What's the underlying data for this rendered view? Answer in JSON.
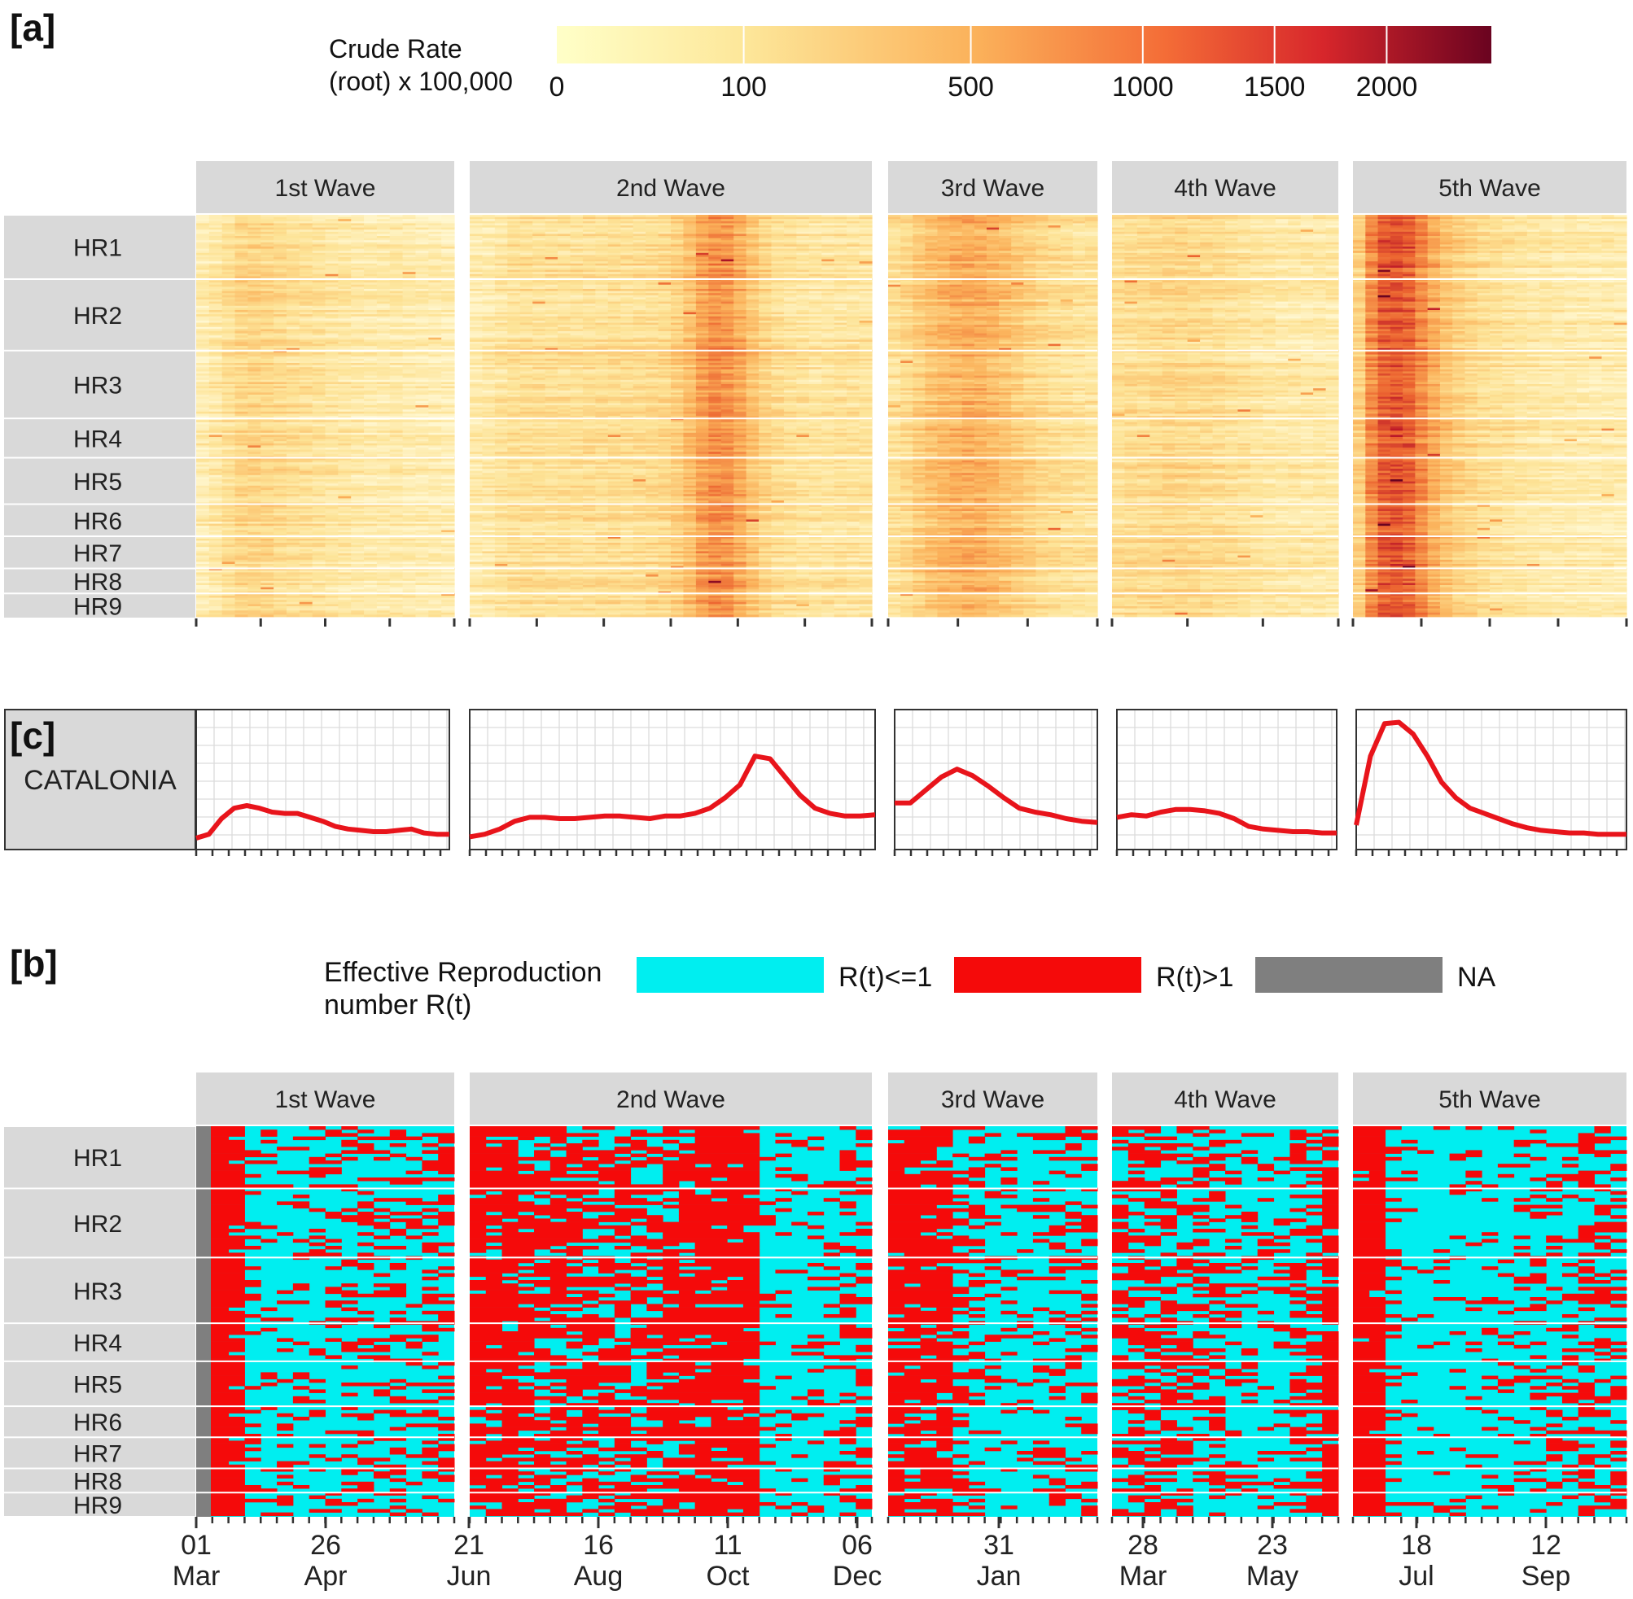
{
  "colors": {
    "strip_bg": "#d9d9d9",
    "line": "#e8141b",
    "grid": "#dcdcdc",
    "rt_low": "#00eef0",
    "rt_high": "#f50a0a",
    "rt_na": "#7f7f7f",
    "heat_low": "#fff7d0",
    "heat_mid": "#fbb15a",
    "heat_high": "#b4112a",
    "heat_max": "#6a0320"
  },
  "panel_labels": {
    "a": "[a]",
    "b": "[b]",
    "c": "[c]"
  },
  "colorbar": {
    "title_line1": "Crude Rate",
    "title_line2": "(root) x 100,000",
    "ticks": [
      {
        "label": "0",
        "value": 0
      },
      {
        "label": "100",
        "value": 100
      },
      {
        "label": "500",
        "value": 500
      },
      {
        "label": "1000",
        "value": 1000
      },
      {
        "label": "1500",
        "value": 1500
      },
      {
        "label": "2000",
        "value": 2000
      }
    ],
    "max_value": 2600
  },
  "rt_legend": {
    "title_line1": "Effective Reproduction",
    "title_line2": "number R(t)",
    "items": [
      {
        "label": "R(t)<=1",
        "color": "#00eef0"
      },
      {
        "label": "R(t)>1",
        "color": "#f50a0a"
      },
      {
        "label": "NA",
        "color": "#7f7f7f"
      }
    ]
  },
  "waves": [
    "1st Wave",
    "2nd Wave",
    "3rd Wave",
    "4th Wave",
    "5th Wave"
  ],
  "regions": [
    "HR1",
    "HR2",
    "HR3",
    "HR4",
    "HR5",
    "HR6",
    "HR7",
    "HR8",
    "HR9"
  ],
  "region_sizes": [
    18,
    20,
    19,
    11,
    13,
    9,
    9,
    7,
    7
  ],
  "catalonia_label": "CATALONIA",
  "x_axis_ticks": [
    {
      "day": "01",
      "month": "Mar"
    },
    {
      "day": "26",
      "month": "Apr"
    },
    {
      "day": "21",
      "month": "Jun"
    },
    {
      "day": "16",
      "month": "Aug"
    },
    {
      "day": "11",
      "month": "Oct"
    },
    {
      "day": "06",
      "month": "Dec"
    },
    {
      "day": "31",
      "month": "Jan"
    },
    {
      "day": "28",
      "month": "Mar"
    },
    {
      "day": "23",
      "month": "May"
    },
    {
      "day": "18",
      "month": "Jul"
    },
    {
      "day": "12",
      "month": "Sep"
    }
  ],
  "chart_data": [
    {
      "panel": "a",
      "type": "heatmap",
      "title": "Crude Rate (root) x 100,000",
      "facets_x": [
        "1st Wave",
        "2nd Wave",
        "3rd Wave",
        "4th Wave",
        "5th Wave"
      ],
      "facets_y": [
        "HR1",
        "HR2",
        "HR3",
        "HR4",
        "HR5",
        "HR6",
        "HR7",
        "HR8",
        "HR9"
      ],
      "wave_profiles": [
        [
          0.1,
          0.14,
          0.2,
          0.26,
          0.27,
          0.26,
          0.23,
          0.21,
          0.2,
          0.18,
          0.16,
          0.15,
          0.13,
          0.12,
          0.12,
          0.13,
          0.11,
          0.1,
          0.1,
          0.09
        ],
        [
          0.12,
          0.14,
          0.17,
          0.2,
          0.21,
          0.21,
          0.2,
          0.2,
          0.2,
          0.21,
          0.21,
          0.22,
          0.21,
          0.22,
          0.23,
          0.25,
          0.3,
          0.38,
          0.5,
          0.56,
          0.55,
          0.46,
          0.36,
          0.28,
          0.22,
          0.2,
          0.18,
          0.17,
          0.17,
          0.18,
          0.18,
          0.17
        ],
        [
          0.2,
          0.24,
          0.3,
          0.36,
          0.4,
          0.42,
          0.44,
          0.43,
          0.4,
          0.36,
          0.32,
          0.28,
          0.24,
          0.22,
          0.2,
          0.18,
          0.17
        ],
        [
          0.2,
          0.22,
          0.22,
          0.24,
          0.25,
          0.25,
          0.24,
          0.23,
          0.22,
          0.2,
          0.18,
          0.16,
          0.15,
          0.14,
          0.14,
          0.13,
          0.13,
          0.13
        ],
        [
          0.3,
          0.58,
          0.72,
          0.74,
          0.7,
          0.58,
          0.45,
          0.36,
          0.3,
          0.26,
          0.22,
          0.2,
          0.18,
          0.16,
          0.15,
          0.14,
          0.13,
          0.13,
          0.12,
          0.12,
          0.12,
          0.11
        ]
      ]
    },
    {
      "panel": "c",
      "type": "line",
      "facet_y": "CATALONIA",
      "facets_x": [
        "1st Wave",
        "2nd Wave",
        "3rd Wave",
        "4th Wave",
        "5th Wave"
      ],
      "ylabel": "",
      "xlabel": "",
      "ylim": [
        0,
        1
      ],
      "series": [
        {
          "name": "1st Wave",
          "values": [
            0.05,
            0.08,
            0.2,
            0.28,
            0.3,
            0.28,
            0.25,
            0.24,
            0.24,
            0.21,
            0.18,
            0.14,
            0.12,
            0.11,
            0.1,
            0.1,
            0.11,
            0.12,
            0.09,
            0.08,
            0.08
          ]
        },
        {
          "name": "2nd Wave",
          "values": [
            0.06,
            0.08,
            0.12,
            0.18,
            0.21,
            0.21,
            0.2,
            0.2,
            0.21,
            0.22,
            0.22,
            0.21,
            0.2,
            0.22,
            0.22,
            0.24,
            0.28,
            0.36,
            0.46,
            0.68,
            0.66,
            0.52,
            0.38,
            0.28,
            0.24,
            0.22,
            0.22,
            0.23
          ]
        },
        {
          "name": "3rd Wave",
          "values": [
            0.32,
            0.32,
            0.42,
            0.52,
            0.58,
            0.53,
            0.45,
            0.36,
            0.28,
            0.25,
            0.23,
            0.2,
            0.18,
            0.17
          ]
        },
        {
          "name": "4th Wave",
          "values": [
            0.21,
            0.23,
            0.22,
            0.25,
            0.27,
            0.27,
            0.26,
            0.24,
            0.2,
            0.14,
            0.12,
            0.11,
            0.1,
            0.1,
            0.09,
            0.09
          ]
        },
        {
          "name": "5th Wave",
          "values": [
            0.15,
            0.68,
            0.93,
            0.94,
            0.85,
            0.68,
            0.48,
            0.36,
            0.28,
            0.24,
            0.2,
            0.16,
            0.13,
            0.11,
            0.1,
            0.09,
            0.09,
            0.08,
            0.08,
            0.08
          ]
        }
      ]
    },
    {
      "panel": "b",
      "type": "heatmap",
      "title": "Effective Reproduction number R(t)",
      "categories": [
        "R(t)<=1",
        "R(t)>1",
        "NA"
      ],
      "facets_x": [
        "1st Wave",
        "2nd Wave",
        "3rd Wave",
        "4th Wave",
        "5th Wave"
      ],
      "facets_y": [
        "HR1",
        "HR2",
        "HR3",
        "HR4",
        "HR5",
        "HR6",
        "HR7",
        "HR8",
        "HR9"
      ],
      "wave_red_probability": [
        [
          1.0,
          1.0,
          0.9,
          0.25,
          0.2,
          0.18,
          0.2,
          0.22,
          0.25,
          0.3,
          0.3,
          0.28,
          0.35,
          0.3,
          0.32,
          0.45
        ],
        [
          0.9,
          0.8,
          0.85,
          0.7,
          0.65,
          0.7,
          0.6,
          0.55,
          0.6,
          0.62,
          0.55,
          0.6,
          0.7,
          0.85,
          0.9,
          0.92,
          0.88,
          0.9,
          0.15,
          0.12,
          0.15,
          0.2,
          0.25,
          0.4,
          0.5
        ],
        [
          0.9,
          0.85,
          0.8,
          0.75,
          0.35,
          0.3,
          0.25,
          0.2,
          0.22,
          0.25,
          0.3,
          0.35,
          0.4
        ],
        [
          0.55,
          0.5,
          0.55,
          0.5,
          0.45,
          0.4,
          0.35,
          0.3,
          0.28,
          0.25,
          0.25,
          0.35,
          0.45,
          0.9
        ],
        [
          0.95,
          0.95,
          0.3,
          0.12,
          0.1,
          0.1,
          0.12,
          0.12,
          0.15,
          0.18,
          0.2,
          0.25,
          0.28,
          0.3,
          0.35,
          0.4,
          0.45
        ]
      ]
    }
  ]
}
